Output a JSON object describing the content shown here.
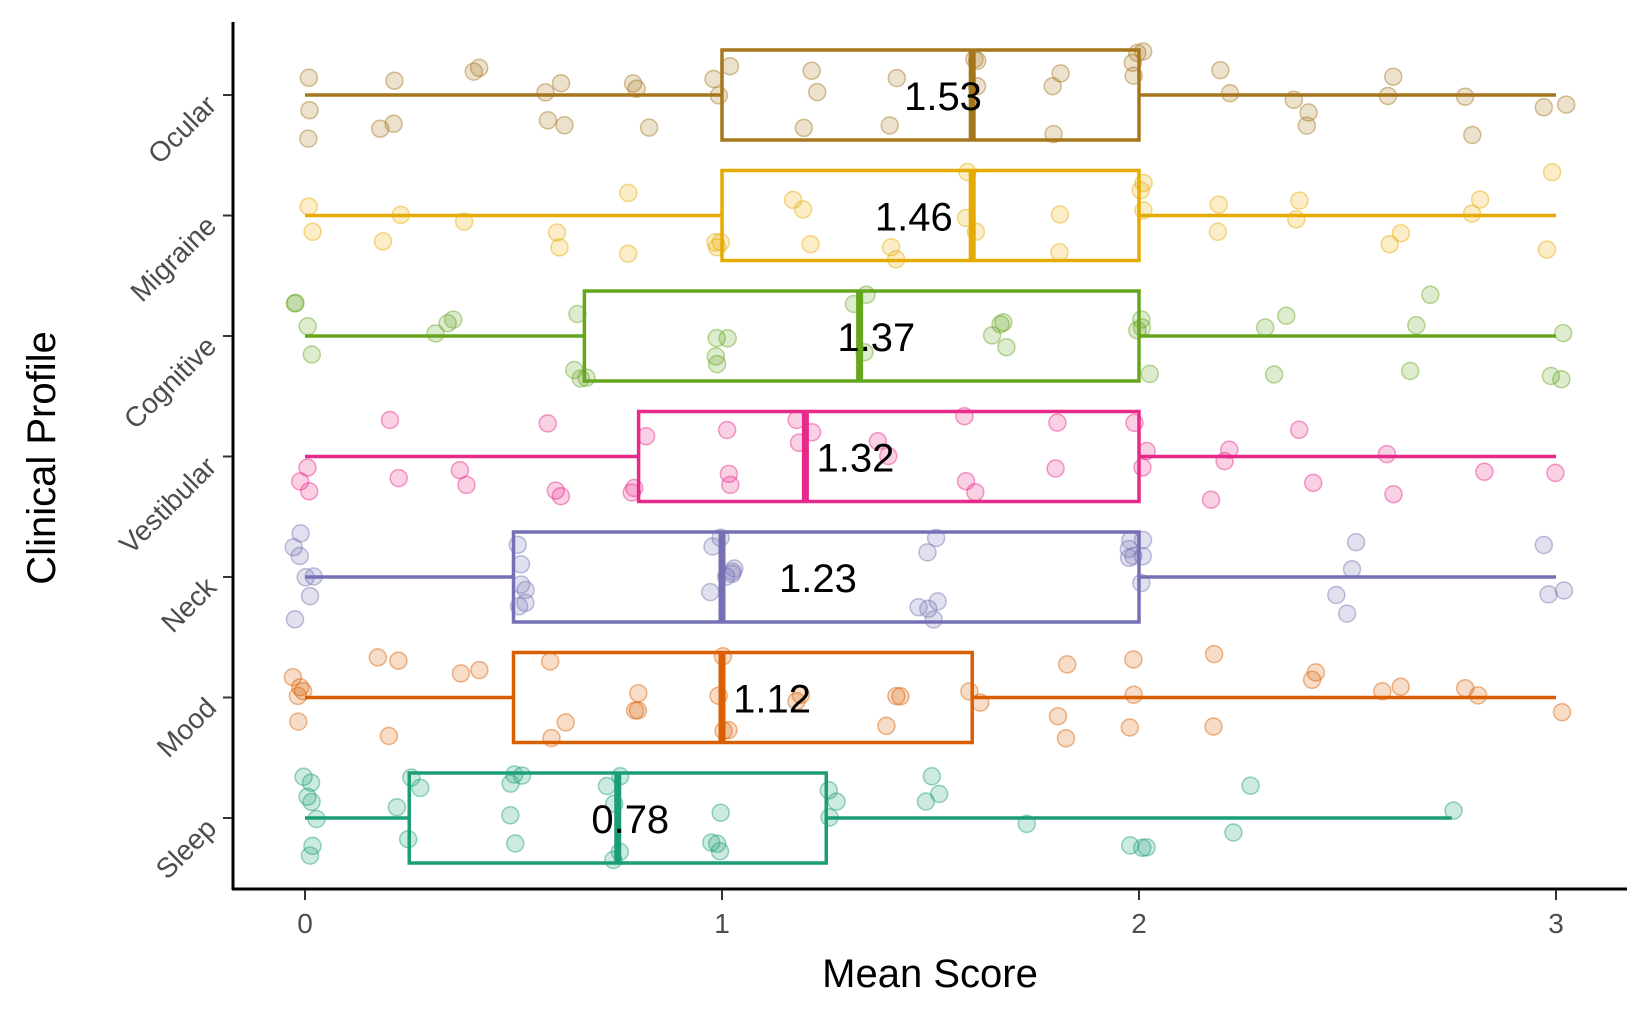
{
  "chart_data": {
    "type": "boxplot",
    "xlabel": "Mean Score",
    "ylabel": "Clinical Profile",
    "xlim": [
      -0.17,
      3.17
    ],
    "x_ticks": [
      "0",
      "1",
      "2",
      "3"
    ],
    "grid": false,
    "legend": "none",
    "categories": [
      "Ocular",
      "Migraine",
      "Cognitive",
      "Vestibular",
      "Neck",
      "Mood",
      "Sleep"
    ],
    "series": [
      {
        "category": "Ocular",
        "color": "#A6761D",
        "min": 0,
        "q1": 1.0,
        "median": 1.6,
        "q3": 2.0,
        "max": 3.0,
        "mean_label": "1.53",
        "points": [
          0,
          0,
          0,
          0.2,
          0.2,
          0.2,
          0.4,
          0.4,
          0.6,
          0.6,
          0.6,
          0.6,
          0.8,
          0.8,
          0.8,
          1.0,
          1.0,
          1.0,
          1.2,
          1.2,
          1.2,
          1.4,
          1.4,
          1.6,
          1.6,
          1.6,
          1.8,
          1.8,
          1.8,
          2.0,
          2.0,
          2.0,
          2.0,
          2.2,
          2.2,
          2.4,
          2.4,
          2.4,
          2.6,
          2.6,
          2.8,
          2.8,
          3.0,
          3.0
        ]
      },
      {
        "category": "Migraine",
        "color": "#E6AB02",
        "min": 0,
        "q1": 1.0,
        "median": 1.6,
        "q3": 2.0,
        "max": 3.0,
        "mean_label": "1.46",
        "points": [
          0,
          0,
          0.2,
          0.2,
          0.4,
          0.6,
          0.6,
          0.8,
          0.8,
          1.0,
          1.0,
          1.0,
          1.2,
          1.2,
          1.2,
          1.4,
          1.4,
          1.6,
          1.6,
          1.6,
          1.8,
          1.8,
          2.0,
          2.0,
          2.0,
          2.2,
          2.2,
          2.4,
          2.4,
          2.6,
          2.6,
          2.8,
          2.8,
          3.0,
          3.0
        ]
      },
      {
        "category": "Cognitive",
        "color": "#66A61E",
        "min": 0,
        "q1": 0.67,
        "median": 1.33,
        "q3": 2.0,
        "max": 3.0,
        "mean_label": "1.37",
        "points": [
          0,
          0,
          0,
          0,
          0.33,
          0.33,
          0.33,
          0.67,
          0.67,
          0.67,
          0.67,
          1.0,
          1.0,
          1.0,
          1.0,
          1.33,
          1.33,
          1.33,
          1.67,
          1.67,
          1.67,
          1.67,
          2.0,
          2.0,
          2.0,
          2.0,
          2.33,
          2.33,
          2.33,
          2.67,
          2.67,
          2.67,
          3.0,
          3.0,
          3.0
        ]
      },
      {
        "category": "Vestibular",
        "color": "#E7298A",
        "min": 0,
        "q1": 0.8,
        "median": 1.2,
        "q3": 2.0,
        "max": 3.0,
        "mean_label": "1.32",
        "points": [
          0,
          0,
          0,
          0.2,
          0.2,
          0.4,
          0.4,
          0.6,
          0.6,
          0.6,
          0.8,
          0.8,
          0.8,
          1.0,
          1.0,
          1.0,
          1.2,
          1.2,
          1.2,
          1.4,
          1.4,
          1.6,
          1.6,
          1.6,
          1.8,
          1.8,
          2.0,
          2.0,
          2.0,
          2.2,
          2.2,
          2.2,
          2.4,
          2.4,
          2.6,
          2.6,
          2.8,
          3.0
        ]
      },
      {
        "category": "Neck",
        "color": "#7570B3",
        "min": 0,
        "q1": 0.5,
        "median": 1.0,
        "q3": 2.0,
        "max": 3.0,
        "mean_label": "1.23",
        "points": [
          0,
          0,
          0,
          0,
          0,
          0,
          0,
          0.5,
          0.5,
          0.5,
          0.5,
          0.5,
          0.5,
          1.0,
          1.0,
          1.0,
          1.0,
          1.0,
          1.0,
          1.0,
          1.5,
          1.5,
          1.5,
          1.5,
          1.5,
          1.5,
          2.0,
          2.0,
          2.0,
          2.0,
          2.0,
          2.0,
          2.0,
          2.5,
          2.5,
          2.5,
          2.5,
          3.0,
          3.0,
          3.0
        ]
      },
      {
        "category": "Mood",
        "color": "#D95F02",
        "min": 0,
        "q1": 0.5,
        "median": 1.0,
        "q3": 1.6,
        "max": 3.0,
        "mean_label": "1.12",
        "points": [
          0,
          0,
          0,
          0,
          0,
          0.2,
          0.2,
          0.2,
          0.4,
          0.4,
          0.6,
          0.6,
          0.6,
          0.8,
          0.8,
          0.8,
          1.0,
          1.0,
          1.0,
          1.0,
          1.2,
          1.2,
          1.4,
          1.4,
          1.4,
          1.6,
          1.6,
          1.8,
          1.8,
          1.8,
          2.0,
          2.0,
          2.0,
          2.2,
          2.2,
          2.4,
          2.4,
          2.6,
          2.6,
          2.8,
          2.8,
          3.0
        ]
      },
      {
        "category": "Sleep",
        "color": "#1B9E77",
        "min": 0,
        "q1": 0.25,
        "median": 0.75,
        "q3": 1.25,
        "max": 2.75,
        "mean_label": "0.78",
        "points": [
          0,
          0,
          0,
          0,
          0,
          0,
          0,
          0.25,
          0.25,
          0.25,
          0.25,
          0.5,
          0.5,
          0.5,
          0.5,
          0.5,
          0.75,
          0.75,
          0.75,
          0.75,
          0.75,
          1.0,
          1.0,
          1.0,
          1.0,
          1.25,
          1.25,
          1.25,
          1.5,
          1.5,
          1.5,
          1.75,
          2.0,
          2.0,
          2.0,
          2.25,
          2.25,
          2.75
        ]
      }
    ]
  }
}
